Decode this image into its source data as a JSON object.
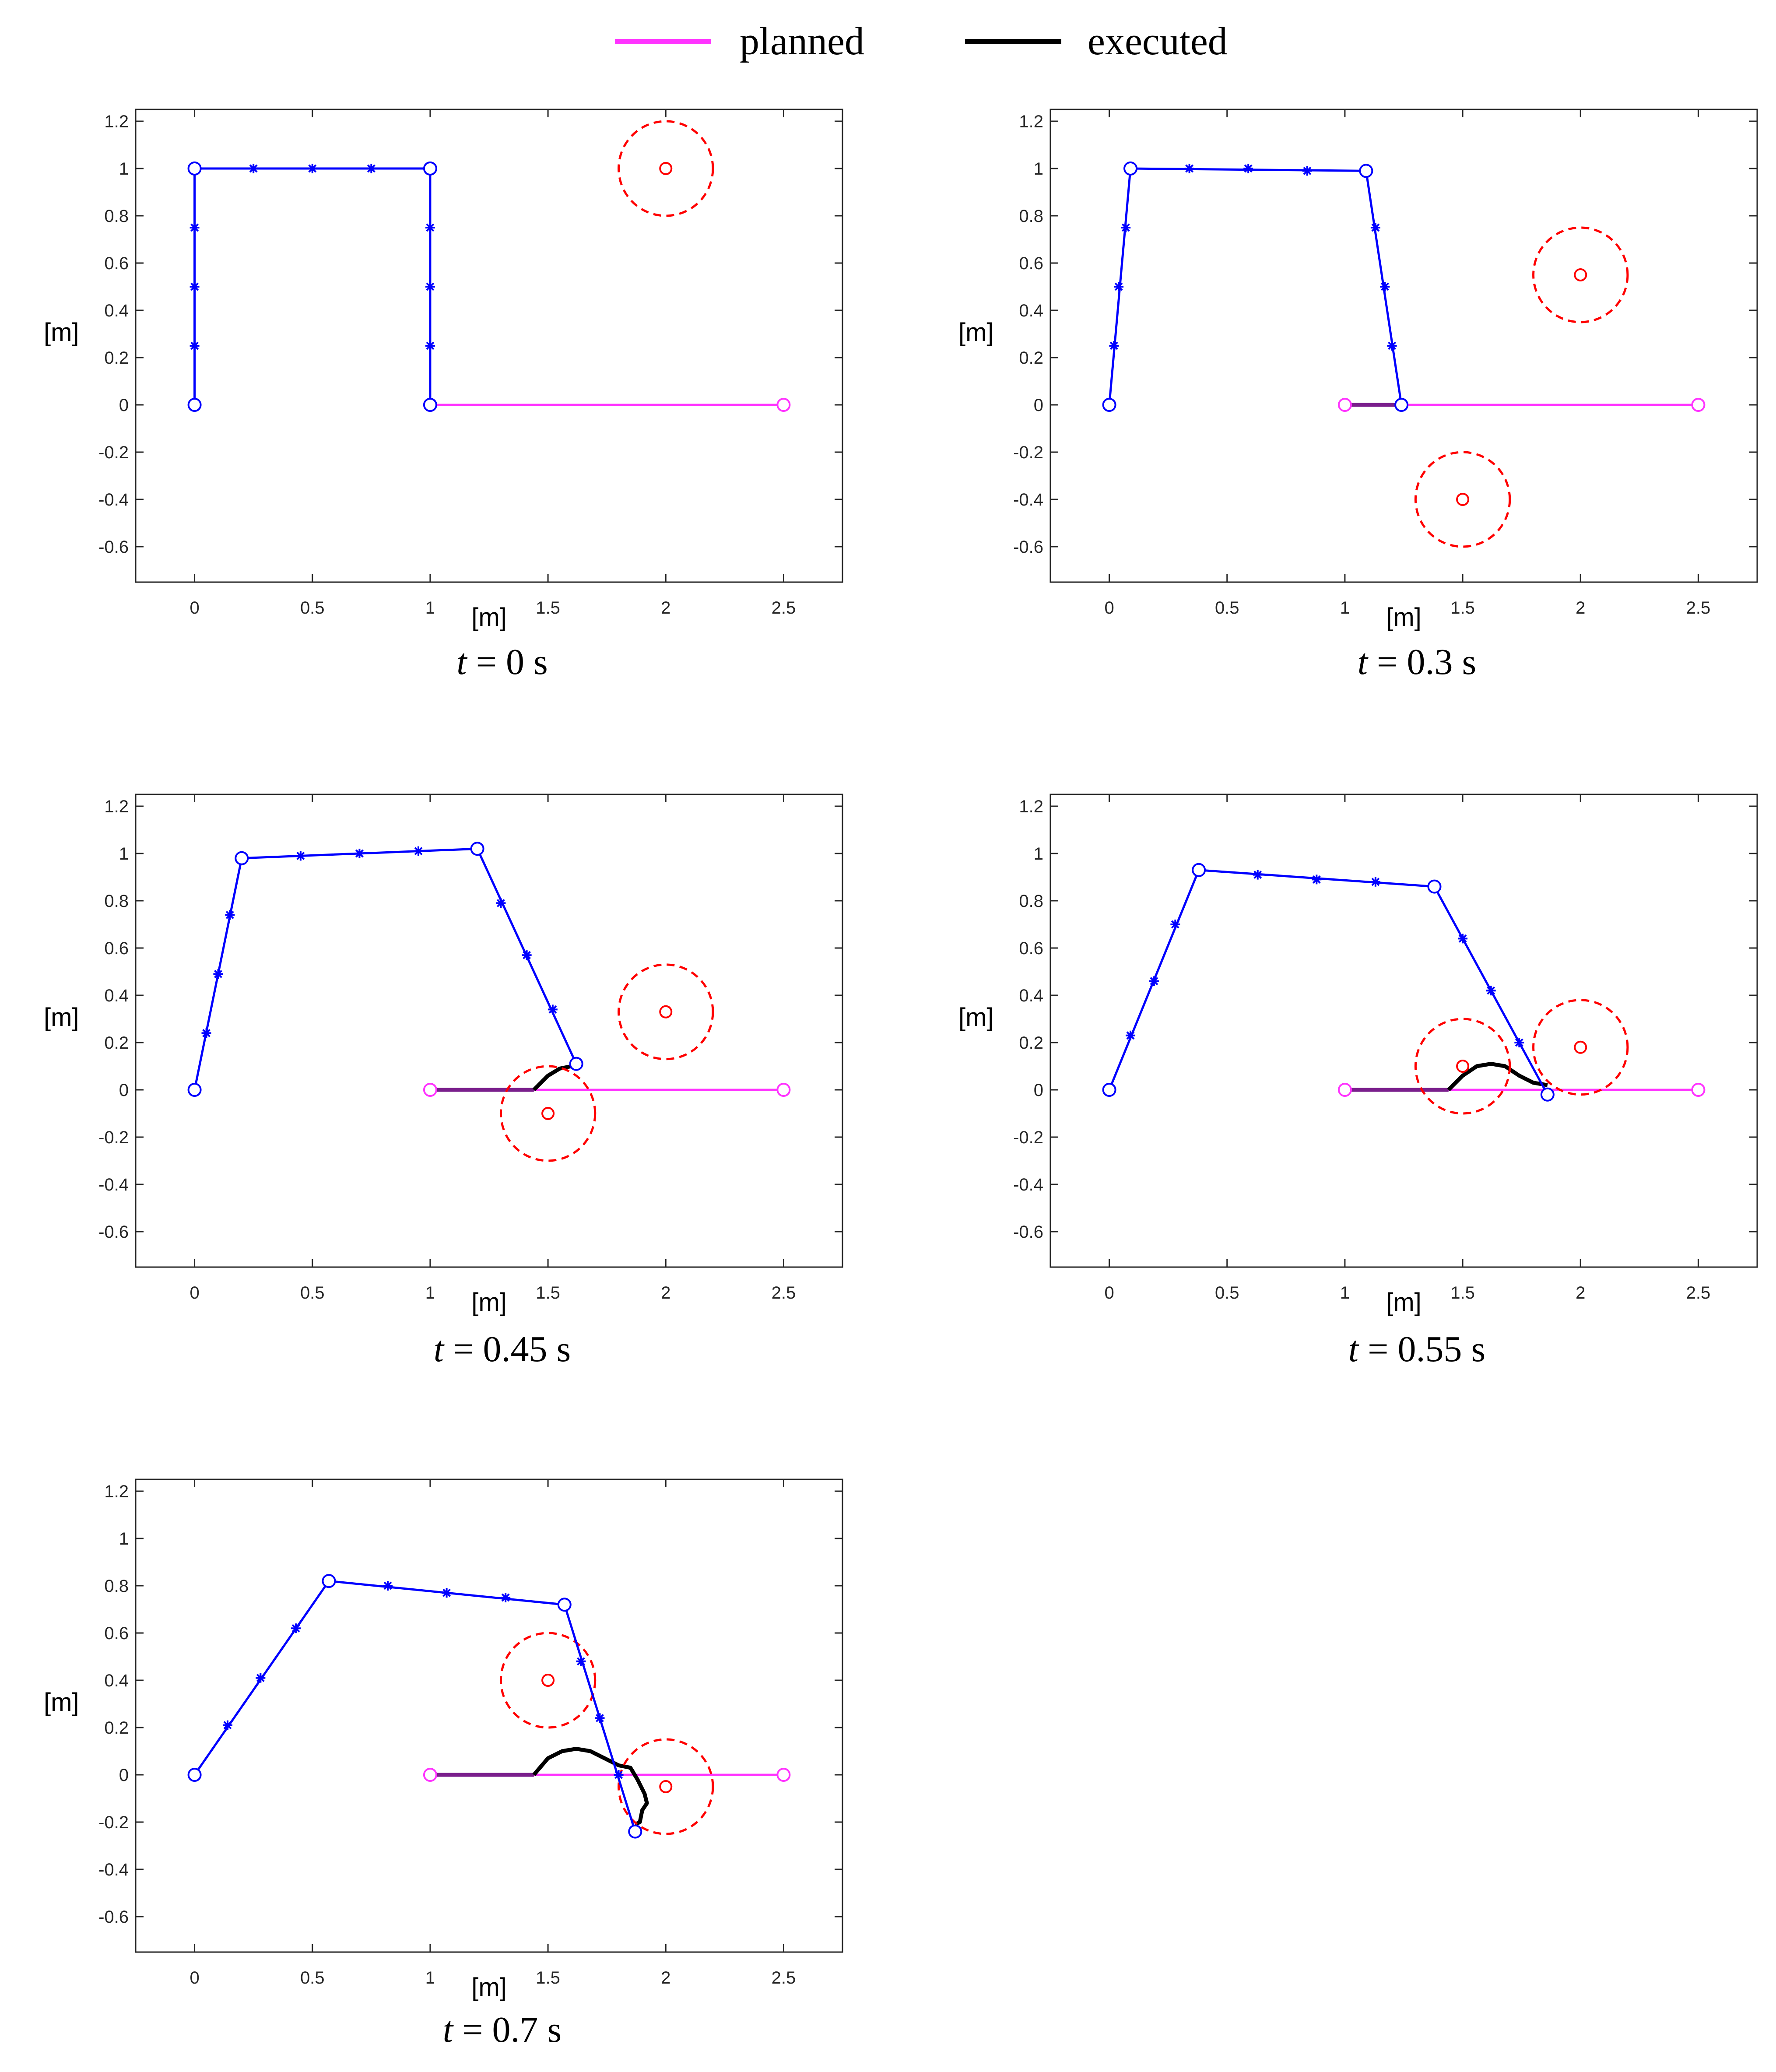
{
  "legend": {
    "planned_label": "planned",
    "executed_label": "executed",
    "planned_color": "#ff33ff",
    "executed_color": "#000000"
  },
  "colors": {
    "arm": "#0000ff",
    "obstacle": "#ff0000",
    "overlap": "#7a1f8c"
  },
  "chart_data": [
    {
      "type": "line",
      "caption_prefix": "t",
      "caption_suffix": " = 0 s",
      "xlabel": "[m]",
      "ylabel": "[m]",
      "xlim": [
        -0.25,
        2.75
      ],
      "ylim": [
        -0.75,
        1.25
      ],
      "xticks": [
        0,
        0.5,
        1,
        1.5,
        2,
        2.5
      ],
      "xtick_labels": [
        "0",
        "0.5",
        "1",
        "1.5",
        "2",
        "2.5"
      ],
      "yticks": [
        -0.6,
        -0.4,
        -0.2,
        0,
        0.2,
        0.4,
        0.6,
        0.8,
        1,
        1.2
      ],
      "ytick_labels": [
        "-0.6",
        "-0.4",
        "-0.2",
        "0",
        "0.2",
        "0.4",
        "0.6",
        "0.8",
        "1",
        "1.2"
      ],
      "arm_joints": [
        [
          0,
          0
        ],
        [
          0,
          1
        ],
        [
          1,
          1
        ],
        [
          1,
          0
        ]
      ],
      "arm_nodes": [
        [
          0,
          0.25
        ],
        [
          0,
          0.5
        ],
        [
          0,
          0.75
        ],
        [
          0.25,
          1
        ],
        [
          0.5,
          1
        ],
        [
          0.75,
          1
        ],
        [
          1,
          0.75
        ],
        [
          1,
          0.5
        ],
        [
          1,
          0.25
        ]
      ],
      "planned": [
        [
          1,
          0
        ],
        [
          2.5,
          0
        ]
      ],
      "executed": [],
      "overlap_end": null,
      "obstacles": [
        {
          "center": [
            2,
            1
          ],
          "radius": 0.2
        }
      ]
    },
    {
      "type": "line",
      "caption_prefix": "t",
      "caption_suffix": " = 0.3 s",
      "xlabel": "[m]",
      "ylabel": "[m]",
      "xlim": [
        -0.25,
        2.75
      ],
      "ylim": [
        -0.75,
        1.25
      ],
      "xticks": [
        0,
        0.5,
        1,
        1.5,
        2,
        2.5
      ],
      "xtick_labels": [
        "0",
        "0.5",
        "1",
        "1.5",
        "2",
        "2.5"
      ],
      "yticks": [
        -0.6,
        -0.4,
        -0.2,
        0,
        0.2,
        0.4,
        0.6,
        0.8,
        1,
        1.2
      ],
      "ytick_labels": [
        "-0.6",
        "-0.4",
        "-0.2",
        "0",
        "0.2",
        "0.4",
        "0.6",
        "0.8",
        "1",
        "1.2"
      ],
      "arm_joints": [
        [
          0,
          0
        ],
        [
          0.09,
          1
        ],
        [
          1.09,
          0.99
        ],
        [
          1.24,
          0
        ]
      ],
      "arm_nodes": [
        [
          0.02,
          0.25
        ],
        [
          0.04,
          0.5
        ],
        [
          0.07,
          0.75
        ],
        [
          0.34,
          1
        ],
        [
          0.59,
          1
        ],
        [
          0.84,
          0.99
        ],
        [
          1.13,
          0.75
        ],
        [
          1.17,
          0.5
        ],
        [
          1.2,
          0.25
        ]
      ],
      "planned": [
        [
          1,
          0
        ],
        [
          2.5,
          0
        ]
      ],
      "executed": [],
      "overlap_end": 1.24,
      "obstacles": [
        {
          "center": [
            2,
            0.55
          ],
          "radius": 0.2
        },
        {
          "center": [
            1.5,
            -0.4
          ],
          "radius": 0.2
        }
      ]
    },
    {
      "type": "line",
      "caption_prefix": "t",
      "caption_suffix": " = 0.45 s",
      "xlabel": "[m]",
      "ylabel": "[m]",
      "xlim": [
        -0.25,
        2.75
      ],
      "ylim": [
        -0.75,
        1.25
      ],
      "xticks": [
        0,
        0.5,
        1,
        1.5,
        2,
        2.5
      ],
      "xtick_labels": [
        "0",
        "0.5",
        "1",
        "1.5",
        "2",
        "2.5"
      ],
      "yticks": [
        -0.6,
        -0.4,
        -0.2,
        0,
        0.2,
        0.4,
        0.6,
        0.8,
        1,
        1.2
      ],
      "ytick_labels": [
        "-0.6",
        "-0.4",
        "-0.2",
        "0",
        "0.2",
        "0.4",
        "0.6",
        "0.8",
        "1",
        "1.2"
      ],
      "arm_joints": [
        [
          0,
          0
        ],
        [
          0.2,
          0.98
        ],
        [
          1.2,
          1.02
        ],
        [
          1.62,
          0.11
        ]
      ],
      "arm_nodes": [
        [
          0.05,
          0.24
        ],
        [
          0.1,
          0.49
        ],
        [
          0.15,
          0.74
        ],
        [
          0.45,
          0.99
        ],
        [
          0.7,
          1
        ],
        [
          0.95,
          1.01
        ],
        [
          1.3,
          0.79
        ],
        [
          1.41,
          0.57
        ],
        [
          1.52,
          0.34
        ]
      ],
      "planned": [
        [
          1,
          0
        ],
        [
          2.5,
          0
        ]
      ],
      "executed": [
        [
          1.44,
          0
        ],
        [
          1.46,
          0.02
        ],
        [
          1.5,
          0.06
        ],
        [
          1.55,
          0.09
        ],
        [
          1.6,
          0.1
        ],
        [
          1.62,
          0.11
        ]
      ],
      "overlap_end": 1.44,
      "obstacles": [
        {
          "center": [
            2,
            0.33
          ],
          "radius": 0.2
        },
        {
          "center": [
            1.5,
            -0.1
          ],
          "radius": 0.2
        }
      ]
    },
    {
      "type": "line",
      "caption_prefix": "t",
      "caption_suffix": " = 0.55 s",
      "xlabel": "[m]",
      "ylabel": "[m]",
      "xlim": [
        -0.25,
        2.75
      ],
      "ylim": [
        -0.75,
        1.25
      ],
      "xticks": [
        0,
        0.5,
        1,
        1.5,
        2,
        2.5
      ],
      "xtick_labels": [
        "0",
        "0.5",
        "1",
        "1.5",
        "2",
        "2.5"
      ],
      "yticks": [
        -0.6,
        -0.4,
        -0.2,
        0,
        0.2,
        0.4,
        0.6,
        0.8,
        1,
        1.2
      ],
      "ytick_labels": [
        "-0.6",
        "-0.4",
        "-0.2",
        "0",
        "0.2",
        "0.4",
        "0.6",
        "0.8",
        "1",
        "1.2"
      ],
      "arm_joints": [
        [
          0,
          0
        ],
        [
          0.38,
          0.93
        ],
        [
          1.38,
          0.86
        ],
        [
          1.86,
          -0.02
        ]
      ],
      "arm_nodes": [
        [
          0.09,
          0.23
        ],
        [
          0.19,
          0.46
        ],
        [
          0.28,
          0.7
        ],
        [
          0.63,
          0.91
        ],
        [
          0.88,
          0.89
        ],
        [
          1.13,
          0.88
        ],
        [
          1.5,
          0.64
        ],
        [
          1.62,
          0.42
        ],
        [
          1.74,
          0.2
        ]
      ],
      "planned": [
        [
          1,
          0
        ],
        [
          2.5,
          0
        ]
      ],
      "executed": [
        [
          1.44,
          0
        ],
        [
          1.5,
          0.06
        ],
        [
          1.56,
          0.1
        ],
        [
          1.62,
          0.11
        ],
        [
          1.68,
          0.1
        ],
        [
          1.74,
          0.06
        ],
        [
          1.8,
          0.03
        ],
        [
          1.86,
          0.02
        ]
      ],
      "overlap_end": 1.44,
      "obstacles": [
        {
          "center": [
            2,
            0.18
          ],
          "radius": 0.2
        },
        {
          "center": [
            1.5,
            0.1
          ],
          "radius": 0.2
        }
      ]
    },
    {
      "type": "line",
      "caption_prefix": "t",
      "caption_suffix": " = 0.7 s",
      "xlabel": "[m]",
      "ylabel": "[m]",
      "xlim": [
        -0.25,
        2.75
      ],
      "ylim": [
        -0.75,
        1.25
      ],
      "xticks": [
        0,
        0.5,
        1,
        1.5,
        2,
        2.5
      ],
      "xtick_labels": [
        "0",
        "0.5",
        "1",
        "1.5",
        "2",
        "2.5"
      ],
      "yticks": [
        -0.6,
        -0.4,
        -0.2,
        0,
        0.2,
        0.4,
        0.6,
        0.8,
        1,
        1.2
      ],
      "ytick_labels": [
        "-0.6",
        "-0.4",
        "-0.2",
        "0",
        "0.2",
        "0.4",
        "0.6",
        "0.8",
        "1",
        "1.2"
      ],
      "arm_joints": [
        [
          0,
          0
        ],
        [
          0.57,
          0.82
        ],
        [
          1.57,
          0.72
        ],
        [
          1.87,
          -0.24
        ]
      ],
      "arm_nodes": [
        [
          0.14,
          0.21
        ],
        [
          0.28,
          0.41
        ],
        [
          0.43,
          0.62
        ],
        [
          0.82,
          0.8
        ],
        [
          1.07,
          0.77
        ],
        [
          1.32,
          0.75
        ],
        [
          1.64,
          0.48
        ],
        [
          1.72,
          0.24
        ],
        [
          1.8,
          0
        ]
      ],
      "planned": [
        [
          1,
          0
        ],
        [
          2.5,
          0
        ]
      ],
      "executed": [
        [
          1.44,
          0
        ],
        [
          1.5,
          0.07
        ],
        [
          1.56,
          0.1
        ],
        [
          1.62,
          0.11
        ],
        [
          1.68,
          0.1
        ],
        [
          1.74,
          0.07
        ],
        [
          1.8,
          0.04
        ],
        [
          1.85,
          0.03
        ],
        [
          1.88,
          -0.02
        ],
        [
          1.91,
          -0.08
        ],
        [
          1.92,
          -0.12
        ],
        [
          1.9,
          -0.15
        ],
        [
          1.89,
          -0.2
        ],
        [
          1.87,
          -0.21
        ]
      ],
      "overlap_end": 1.44,
      "obstacles": [
        {
          "center": [
            1.5,
            0.4
          ],
          "radius": 0.2
        },
        {
          "center": [
            2,
            -0.05
          ],
          "radius": 0.2
        }
      ]
    }
  ]
}
